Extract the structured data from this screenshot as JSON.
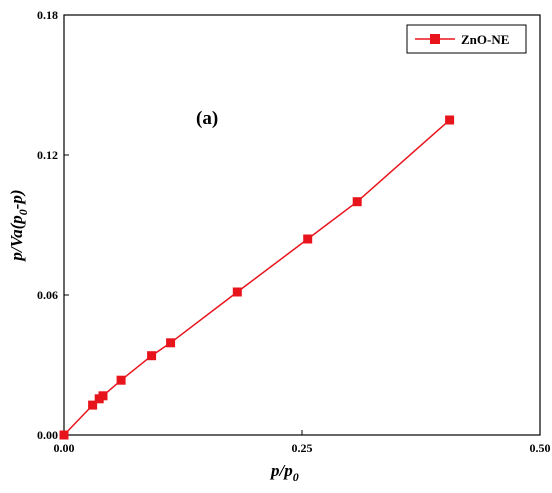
{
  "chart_data": {
    "type": "line",
    "xlabel_main": "p/p",
    "xlabel_sub": "0",
    "ylabel_parts": {
      "a": "p/Va(p",
      "sub": "0",
      "b": "-p)"
    },
    "xlim": [
      0,
      0.5
    ],
    "ylim": [
      0,
      0.18
    ],
    "xticks": [
      0,
      0.25,
      0.5
    ],
    "xtick_labels": [
      "0.00",
      "0.25",
      "0.50"
    ],
    "yticks": [
      0,
      0.06,
      0.12,
      0.18
    ],
    "ytick_labels": [
      "0.00",
      "0.06",
      "0.12",
      "0.18"
    ],
    "grid": false,
    "legend_position": "top-right",
    "annotation": "(a)",
    "color": "#e8141c",
    "series": [
      {
        "name": "ZnO-NE",
        "x": [
          0.0,
          0.03,
          0.037,
          0.041,
          0.06,
          0.092,
          0.112,
          0.182,
          0.256,
          0.308,
          0.405
        ],
        "y": [
          0.0,
          0.0128,
          0.0155,
          0.0168,
          0.0235,
          0.034,
          0.0395,
          0.0613,
          0.084,
          0.1,
          0.135
        ]
      }
    ]
  }
}
